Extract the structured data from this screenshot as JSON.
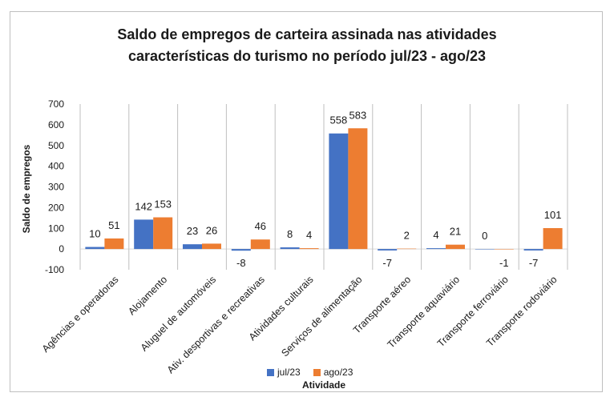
{
  "chart_data": {
    "type": "bar",
    "title_line1": "Saldo de empregos de carteira assinada nas atividades",
    "title_line2": "características do turismo no período jul/23 - ago/23",
    "xlabel": "Atividade",
    "ylabel": "Saldo de empregos",
    "ylim": [
      -100,
      700
    ],
    "yticks": [
      -100,
      0,
      100,
      200,
      300,
      400,
      500,
      600,
      700
    ],
    "categories": [
      "Agências e operadoras",
      "Alojamento",
      "Aluguel de automóveis",
      "Ativ. desportivas e recreativas",
      "Atividades culturais",
      "Serviços de alimentação",
      "Transporte aéreo",
      "Transporte aquaviário",
      "Transporte ferroviário",
      "Transporte rodoviário"
    ],
    "series": [
      {
        "name": "jul/23",
        "color": "#4472c4",
        "values": [
          10,
          142,
          23,
          -8,
          8,
          558,
          -7,
          4,
          0,
          -7
        ]
      },
      {
        "name": "ago/23",
        "color": "#ed7d31",
        "values": [
          51,
          153,
          26,
          46,
          4,
          583,
          2,
          21,
          -1,
          101
        ]
      }
    ],
    "legend_position": "bottom"
  }
}
